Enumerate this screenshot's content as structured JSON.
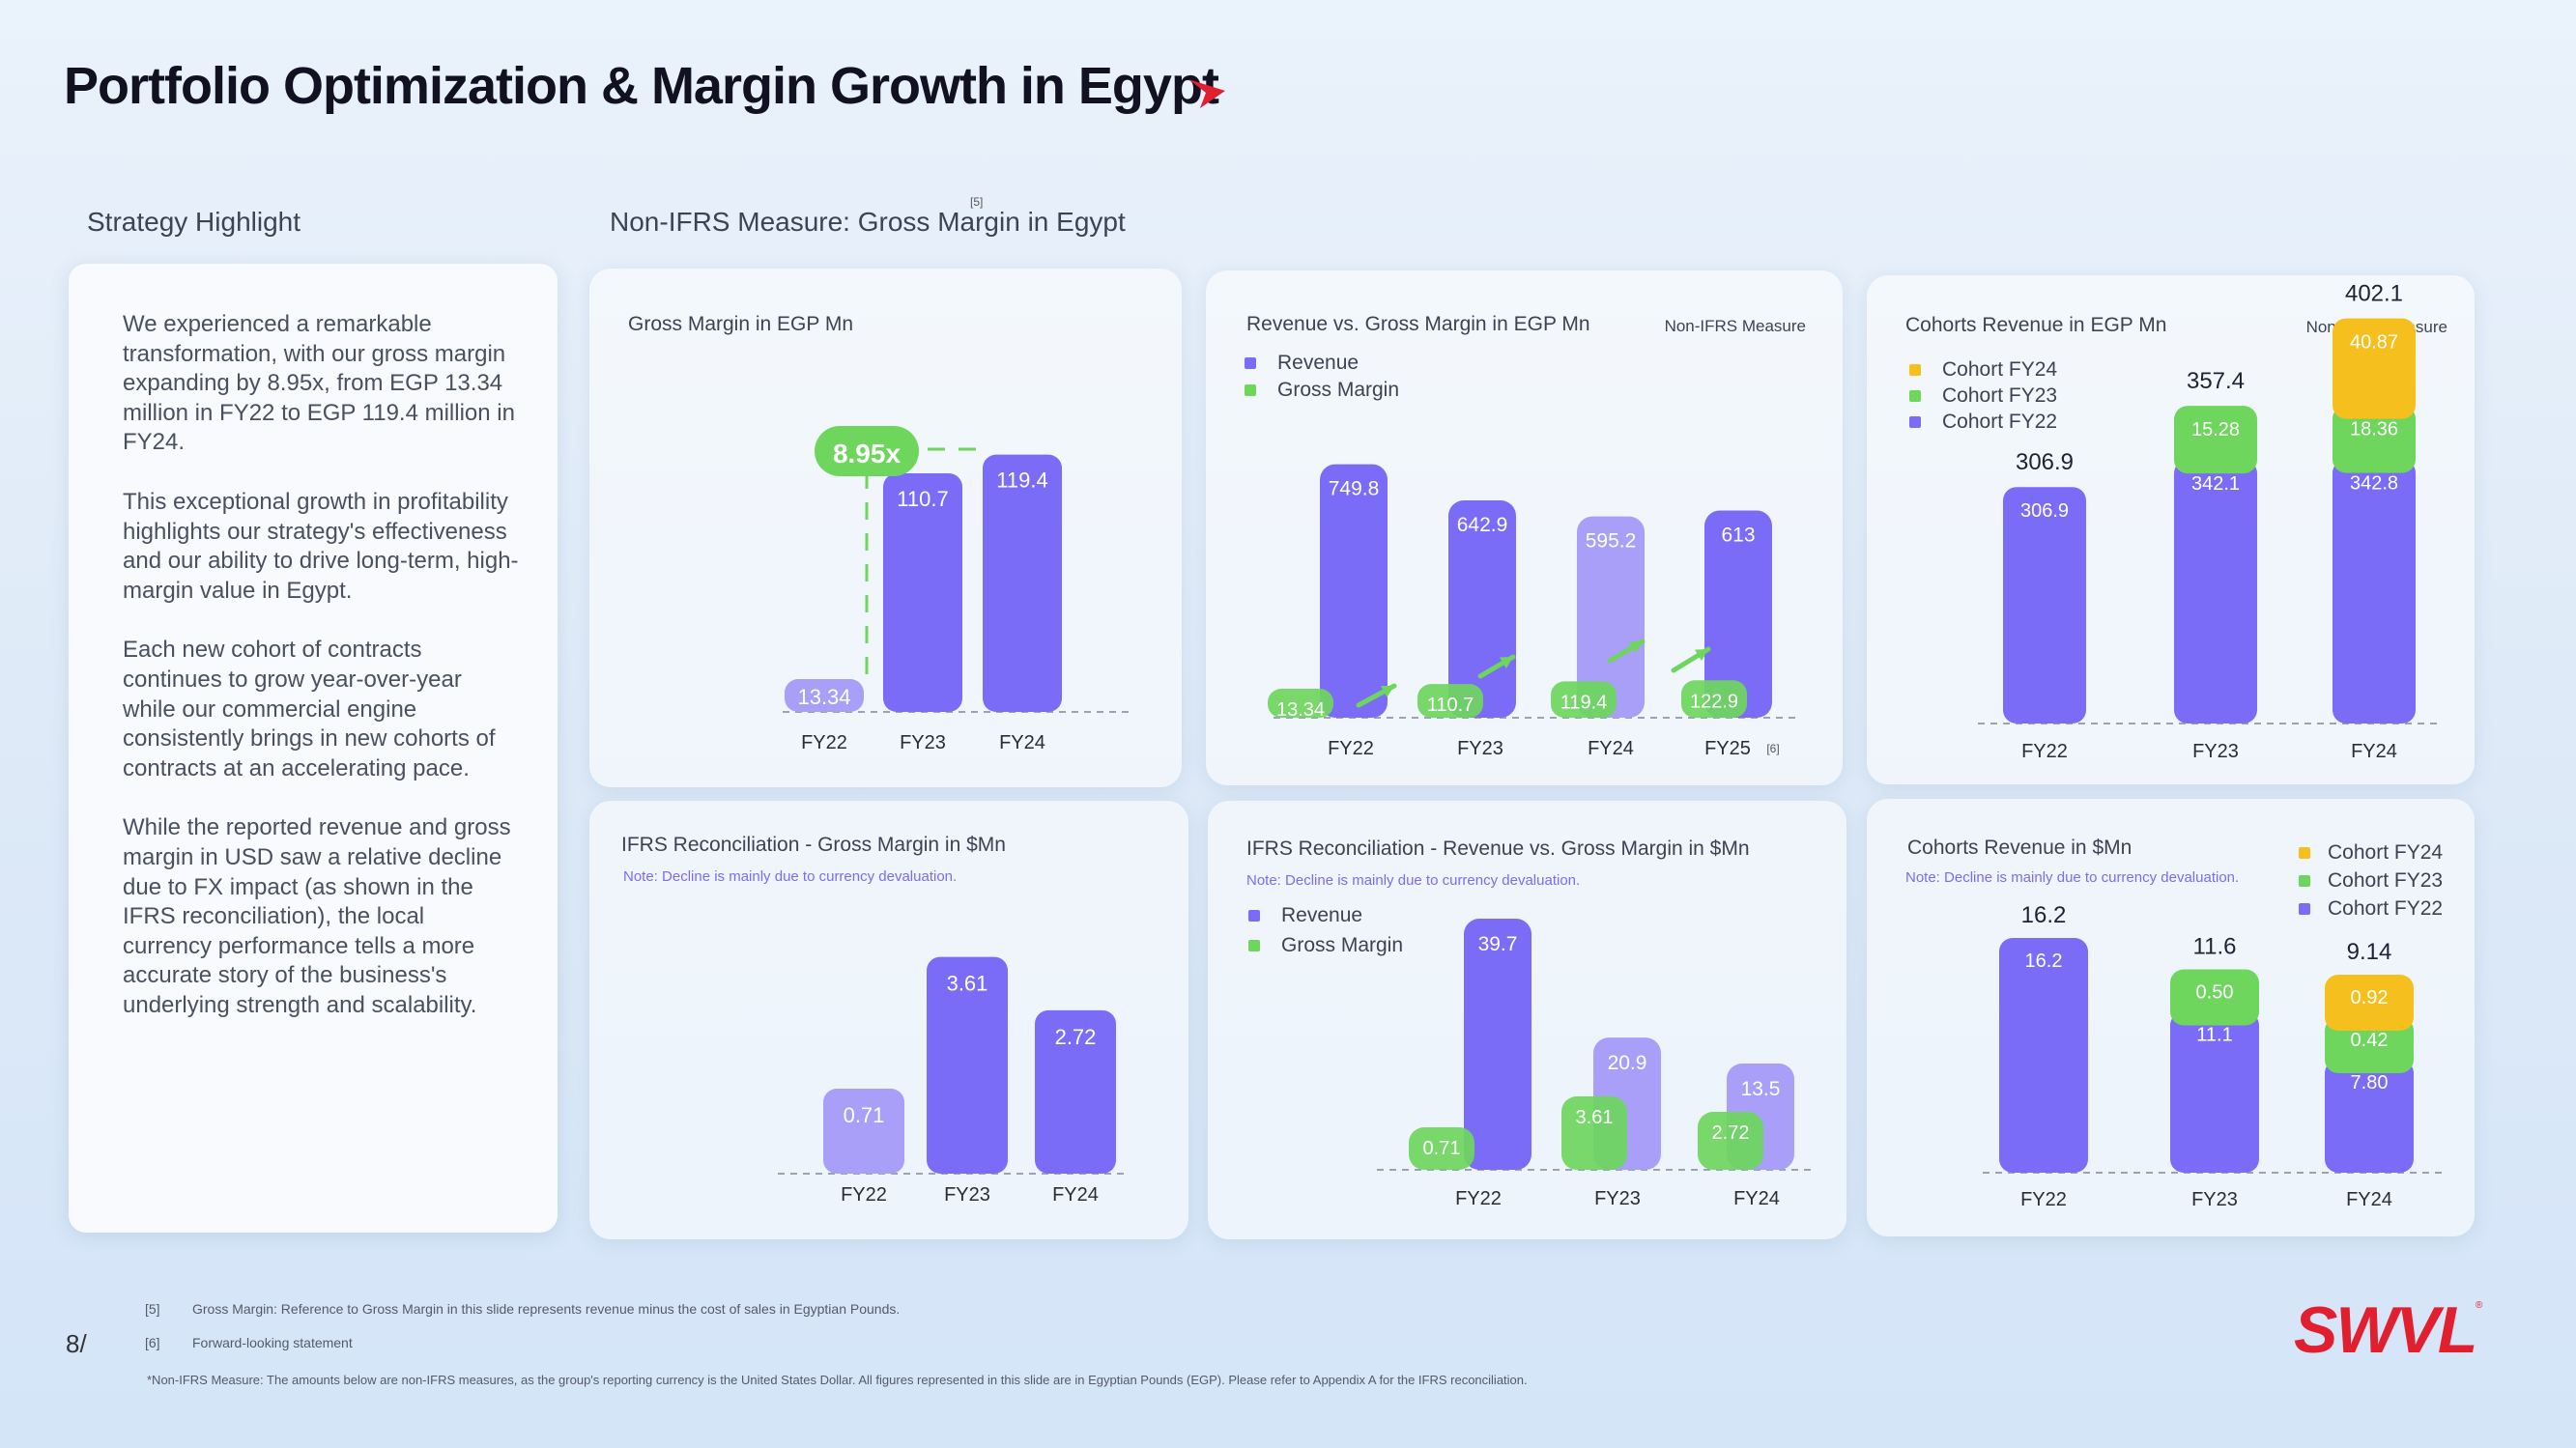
{
  "header": {
    "title": "Portfolio Optimization & Margin Growth in Egypt",
    "strategy_label": "Strategy Highlight",
    "measure_label": "Non-IFRS Measure: Gross Margin in Egypt",
    "measure_ref": "[5]"
  },
  "strategy": {
    "paragraphs": [
      "We experienced a remarkable transformation, with our gross margin expanding by 8.95x, from EGP 13.34 million in FY22 to EGP 119.4 million in FY24.",
      "This exceptional growth in profitability highlights our strategy's effectiveness and our ability to drive long-term, high-margin value in Egypt.",
      "Each new cohort of contracts continues to grow year-over-year while our commercial engine consistently brings in new cohorts of contracts at an accelerating pace.",
      "While the reported revenue and gross margin in USD saw a relative decline due to FX impact (as shown in the IFRS reconciliation), the local currency performance tells a more accurate story of the business's underlying strength and scalability."
    ]
  },
  "colors": {
    "purple": "#7b6cf7",
    "light_purple": "#a99ff8",
    "green": "#6ed65d",
    "yellow": "#f5c01e",
    "brand_red": "#e0202f"
  },
  "cards": {
    "gm_egp": {
      "title": "Gross Margin in EGP Mn"
    },
    "rev_gm_egp": {
      "title": "Revenue vs. Gross Margin in EGP Mn",
      "badge": "Non-IFRS Measure",
      "legend": [
        "Revenue",
        "Gross Margin"
      ]
    },
    "cohorts_egp": {
      "title": "Cohorts Revenue in EGP Mn",
      "badge": "Non-IFRS Measure",
      "legend": [
        "Cohort FY24",
        "Cohort FY23",
        "Cohort FY22"
      ]
    },
    "gm_usd": {
      "title": "IFRS Reconciliation - Gross Margin in $Mn",
      "note": "Note: Decline is mainly due to currency devaluation."
    },
    "rev_gm_usd": {
      "title": "IFRS Reconciliation - Revenue vs. Gross Margin in $Mn",
      "note": "Note: Decline is mainly due to currency devaluation.",
      "legend": [
        "Revenue",
        "Gross Margin"
      ]
    },
    "cohorts_usd": {
      "title": "Cohorts Revenue in $Mn",
      "note": "Note: Decline is mainly due to currency devaluation.",
      "legend": [
        "Cohort FY24",
        "Cohort FY23",
        "Cohort FY22"
      ]
    }
  },
  "chart_data": [
    {
      "id": "gm_egp",
      "type": "bar",
      "title": "Gross Margin in EGP Mn",
      "categories": [
        "FY22",
        "FY23",
        "FY24"
      ],
      "values": [
        13.34,
        110.7,
        119.4
      ],
      "labels": [
        "13.34",
        "110.7",
        "119.4"
      ],
      "annotation": "8.95x",
      "ylim": [
        0,
        130
      ]
    },
    {
      "id": "rev_gm_egp",
      "type": "bar",
      "title": "Revenue vs. Gross Margin in EGP Mn",
      "categories": [
        "FY22",
        "FY23",
        "FY24",
        "FY25"
      ],
      "category_refs": [
        "",
        "",
        "",
        "[6]"
      ],
      "series": [
        {
          "name": "Revenue",
          "values": [
            749.8,
            642.9,
            595.2,
            613
          ],
          "labels": [
            "749.8",
            "642.9",
            "595.2",
            "613"
          ]
        },
        {
          "name": "Gross Margin",
          "values": [
            13.34,
            110.7,
            119.4,
            122.9
          ],
          "labels": [
            "13.34",
            "110.7",
            "119.4",
            "122.9"
          ]
        }
      ],
      "ylim": [
        0,
        800
      ]
    },
    {
      "id": "cohorts_egp",
      "type": "bar",
      "stacked": true,
      "title": "Cohorts Revenue in EGP Mn",
      "categories": [
        "FY22",
        "FY23",
        "FY24"
      ],
      "totals": [
        "306.9",
        "357.4",
        "402.1"
      ],
      "series": [
        {
          "name": "Cohort FY22",
          "values": [
            306.9,
            342.1,
            342.8
          ],
          "labels": [
            "306.9",
            "342.1",
            "342.8"
          ]
        },
        {
          "name": "Cohort FY23",
          "values": [
            0,
            15.28,
            18.36
          ],
          "labels": [
            "",
            "15.28",
            "18.36"
          ]
        },
        {
          "name": "Cohort FY24",
          "values": [
            0,
            0,
            40.87
          ],
          "labels": [
            "",
            "",
            "40.87"
          ]
        }
      ],
      "ylim": [
        0,
        420
      ]
    },
    {
      "id": "gm_usd",
      "type": "bar",
      "title": "IFRS Reconciliation - Gross Margin in $Mn",
      "categories": [
        "FY22",
        "FY23",
        "FY24"
      ],
      "values": [
        0.71,
        3.61,
        2.72
      ],
      "labels": [
        "0.71",
        "3.61",
        "2.72"
      ],
      "ylim": [
        0,
        3.7
      ]
    },
    {
      "id": "rev_gm_usd",
      "type": "bar",
      "title": "IFRS Reconciliation - Revenue vs. Gross Margin in $Mn",
      "categories": [
        "FY22",
        "FY23",
        "FY24"
      ],
      "series": [
        {
          "name": "Revenue",
          "values": [
            39.7,
            20.9,
            13.5
          ],
          "labels": [
            "39.7",
            "20.9",
            "13.5"
          ]
        },
        {
          "name": "Gross Margin",
          "values": [
            0.71,
            3.61,
            2.72
          ],
          "labels": [
            "0.71",
            "3.61",
            "2.72"
          ]
        }
      ],
      "ylim": [
        0,
        42
      ]
    },
    {
      "id": "cohorts_usd",
      "type": "bar",
      "stacked": true,
      "title": "Cohorts Revenue in $Mn",
      "categories": [
        "FY22",
        "FY23",
        "FY24"
      ],
      "totals": [
        "16.2",
        "11.6",
        "9.14"
      ],
      "series": [
        {
          "name": "Cohort FY22",
          "values": [
            16.2,
            11.1,
            7.8
          ],
          "labels": [
            "16.2",
            "11.1",
            "7.80"
          ]
        },
        {
          "name": "Cohort FY23",
          "values": [
            0,
            0.5,
            0.42
          ],
          "labels": [
            "",
            "0.50",
            "0.42"
          ]
        },
        {
          "name": "Cohort FY24",
          "values": [
            0,
            0,
            0.92
          ],
          "labels": [
            "",
            "",
            "0.92"
          ]
        }
      ],
      "ylim": [
        0,
        17
      ]
    }
  ],
  "footer": {
    "page_number": "8/",
    "notes": [
      {
        "ref": "[5]",
        "text": "Gross Margin: Reference to Gross Margin in this slide represents revenue minus the cost of sales in Egyptian Pounds."
      },
      {
        "ref": "[6]",
        "text": "Forward-looking statement"
      }
    ],
    "disclaimer": "*Non-IFRS Measure: The amounts below are non-IFRS measures, as the group's reporting currency is the United States Dollar. All figures represented in this slide are in Egyptian Pounds (EGP). Please refer to Appendix A for the IFRS reconciliation.",
    "logo": "SWVL"
  }
}
